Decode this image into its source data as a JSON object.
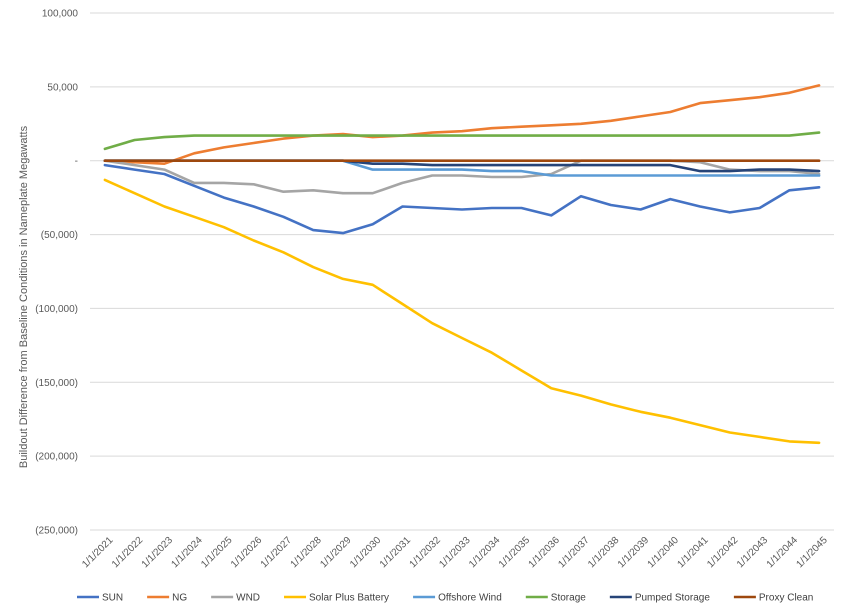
{
  "chart_data": {
    "type": "line",
    "title": "",
    "xlabel": "",
    "ylabel": "Buildout Difference from Baseline Conditions in Nameplate Megawatts",
    "ylim": [
      -250000,
      100000
    ],
    "ytick_values": [
      100000,
      50000,
      0,
      -50000,
      -100000,
      -150000,
      -200000,
      -250000
    ],
    "ytick_labels": [
      "100,000",
      "50,000",
      "-",
      "(50,000)",
      "(100,000)",
      "(150,000)",
      "(200,000)",
      "(250,000)"
    ],
    "grid": "horizontal",
    "legend_position": "bottom",
    "x": [
      "1/1/2021",
      "1/1/2022",
      "1/1/2023",
      "1/1/2024",
      "1/1/2025",
      "1/1/2026",
      "1/1/2027",
      "1/1/2028",
      "1/1/2029",
      "1/1/2030",
      "1/1/2031",
      "1/1/2032",
      "1/1/2033",
      "1/1/2034",
      "1/1/2035",
      "1/1/2036",
      "1/1/2037",
      "1/1/2038",
      "1/1/2039",
      "1/1/2040",
      "1/1/2041",
      "1/1/2042",
      "1/1/2043",
      "1/1/2044",
      "1/1/2045"
    ],
    "series": [
      {
        "name": "SUN",
        "color": "#4472C4",
        "values": [
          -3000,
          -6000,
          -9000,
          -17000,
          -25000,
          -31000,
          -38000,
          -47000,
          -49000,
          -43000,
          -31000,
          -32000,
          -33000,
          -32000,
          -32000,
          -37000,
          -24000,
          -30000,
          -33000,
          -26000,
          -31000,
          -35000,
          -32000,
          -20000,
          -18000
        ]
      },
      {
        "name": "NG",
        "color": "#ED7D31",
        "values": [
          0,
          -1000,
          -2000,
          5000,
          9000,
          12000,
          15000,
          17000,
          18000,
          16000,
          17000,
          19000,
          20000,
          22000,
          23000,
          24000,
          25000,
          27000,
          30000,
          33000,
          39000,
          41000,
          43000,
          46000,
          51000
        ]
      },
      {
        "name": "WND",
        "color": "#A5A5A5",
        "values": [
          0,
          -3000,
          -6000,
          -15000,
          -15000,
          -16000,
          -21000,
          -20000,
          -22000,
          -22000,
          -15000,
          -10000,
          -10000,
          -11000,
          -11000,
          -9000,
          0,
          0,
          0,
          0,
          -1000,
          -6000,
          -7000,
          -7000,
          -9000
        ]
      },
      {
        "name": "Solar Plus Battery",
        "color": "#FFC000",
        "values": [
          -13000,
          -22000,
          -31000,
          -38000,
          -45000,
          -54000,
          -62000,
          -72000,
          -80000,
          -84000,
          -97000,
          -110000,
          -120000,
          -130000,
          -142000,
          -154000,
          -159000,
          -165000,
          -170000,
          -174000,
          -179000,
          -184000,
          -187000,
          -190000,
          -191000
        ]
      },
      {
        "name": "Offshore Wind",
        "color": "#5B9BD5",
        "values": [
          0,
          0,
          0,
          0,
          0,
          0,
          0,
          0,
          0,
          -6000,
          -6000,
          -6000,
          -6000,
          -7000,
          -7000,
          -10000,
          -10000,
          -10000,
          -10000,
          -10000,
          -10000,
          -10000,
          -10000,
          -10000,
          -10000
        ]
      },
      {
        "name": "Storage",
        "color": "#70AD47",
        "values": [
          8000,
          14000,
          16000,
          17000,
          17000,
          17000,
          17000,
          17000,
          17000,
          17000,
          17000,
          17000,
          17000,
          17000,
          17000,
          17000,
          17000,
          17000,
          17000,
          17000,
          17000,
          17000,
          17000,
          17000,
          19000
        ]
      },
      {
        "name": "Pumped Storage",
        "color": "#264478",
        "values": [
          0,
          0,
          0,
          0,
          0,
          0,
          0,
          0,
          0,
          -2000,
          -2000,
          -3000,
          -3000,
          -3000,
          -3000,
          -3000,
          -3000,
          -3000,
          -3000,
          -3000,
          -7000,
          -7000,
          -6000,
          -6000,
          -7000
        ]
      },
      {
        "name": "Proxy Clean",
        "color": "#9E480E",
        "values": [
          0,
          0,
          0,
          0,
          0,
          0,
          0,
          0,
          0,
          0,
          0,
          0,
          0,
          0,
          0,
          0,
          0,
          0,
          0,
          0,
          0,
          0,
          0,
          0,
          0
        ]
      }
    ]
  }
}
